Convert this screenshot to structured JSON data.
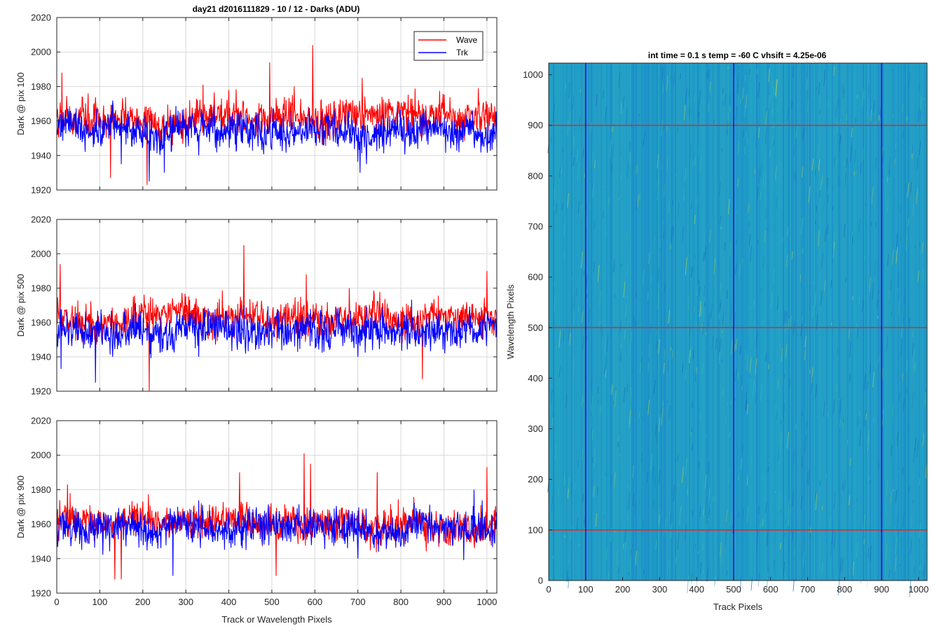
{
  "figure": {
    "left_title": "day21 d2016111829 - 10 / 12 - Darks (ADU)",
    "right_title": "int time = 0.1 s   temp = -60 C   vhsift = 4.25e-06"
  },
  "colors": {
    "wave": "#ff0000",
    "trk": "#0000ff",
    "image_base": "#1f9ec8",
    "grid": "#d9d9d9"
  },
  "chart_data": [
    {
      "type": "line",
      "panel": "top",
      "ylabel": "Dark @ pix 100",
      "xlabel": "",
      "xlim": [
        0,
        1023
      ],
      "ylim": [
        1920,
        2020
      ],
      "xticks": [
        0,
        100,
        200,
        300,
        400,
        500,
        600,
        700,
        800,
        900,
        1000
      ],
      "yticks": [
        1920,
        1940,
        1960,
        1980,
        2000,
        2020
      ],
      "legend": {
        "position": "top-right",
        "entries": [
          "Wave",
          "Trk"
        ]
      },
      "series": [
        {
          "name": "Wave",
          "color": "#ff0000",
          "mean": 1961,
          "noise": 7,
          "notable_points": [
            [
              12,
              1988
            ],
            [
              125,
              1927
            ],
            [
              210,
              1923
            ],
            [
              340,
              1981
            ],
            [
              400,
              1978
            ],
            [
              495,
              1994
            ],
            [
              552,
              1980
            ],
            [
              595,
              2004
            ],
            [
              710,
              1985
            ],
            [
              980,
              1979
            ]
          ]
        },
        {
          "name": "Trk",
          "color": "#0000ff",
          "mean": 1955,
          "noise": 7,
          "notable_points": [
            [
              150,
              1935
            ],
            [
              215,
              1925
            ],
            [
              250,
              1930
            ],
            [
              330,
              1940
            ],
            [
              705,
              1930
            ],
            [
              720,
              1935
            ]
          ]
        }
      ]
    },
    {
      "type": "line",
      "panel": "middle",
      "ylabel": "Dark @ pix 500",
      "xlabel": "",
      "xlim": [
        0,
        1023
      ],
      "ylim": [
        1920,
        2020
      ],
      "xticks": [
        0,
        100,
        200,
        300,
        400,
        500,
        600,
        700,
        800,
        900,
        1000
      ],
      "yticks": [
        1920,
        1940,
        1960,
        1980,
        2000,
        2020
      ],
      "series": [
        {
          "name": "Wave",
          "color": "#ff0000",
          "mean": 1962,
          "noise": 7,
          "notable_points": [
            [
              8,
              1994
            ],
            [
              215,
              1920
            ],
            [
              435,
              2005
            ],
            [
              580,
              1988
            ],
            [
              680,
              1980
            ],
            [
              850,
              1927
            ],
            [
              1000,
              1990
            ]
          ]
        },
        {
          "name": "Trk",
          "color": "#0000ff",
          "mean": 1955,
          "noise": 7,
          "notable_points": [
            [
              10,
              1933
            ],
            [
              90,
              1925
            ],
            [
              130,
              1940
            ],
            [
              330,
              1940
            ],
            [
              500,
              1945
            ],
            [
              700,
              1940
            ]
          ]
        }
      ]
    },
    {
      "type": "line",
      "panel": "bottom",
      "ylabel": "Dark @ pix 900",
      "xlabel": "Track or Wavelength Pixels",
      "xlim": [
        0,
        1023
      ],
      "ylim": [
        1920,
        2020
      ],
      "xticks": [
        0,
        100,
        200,
        300,
        400,
        500,
        600,
        700,
        800,
        900,
        1000
      ],
      "yticks": [
        1920,
        1940,
        1960,
        1980,
        2000,
        2020
      ],
      "series": [
        {
          "name": "Wave",
          "color": "#ff0000",
          "mean": 1961,
          "noise": 7,
          "notable_points": [
            [
              25,
              1983
            ],
            [
              135,
              1928
            ],
            [
              150,
              1928
            ],
            [
              425,
              1990
            ],
            [
              510,
              1930
            ],
            [
              575,
              2001
            ],
            [
              590,
              1995
            ],
            [
              745,
              1990
            ],
            [
              1000,
              1993
            ]
          ]
        },
        {
          "name": "Trk",
          "color": "#0000ff",
          "mean": 1958,
          "noise": 7,
          "notable_points": [
            [
              270,
              1930
            ],
            [
              440,
              1945
            ],
            [
              700,
              1940
            ],
            [
              900,
              1950
            ],
            [
              970,
              1980
            ]
          ]
        }
      ]
    },
    {
      "type": "heatmap",
      "panel": "image",
      "xlabel": "Track Pixels",
      "ylabel": "Wavelength Pixels",
      "xlim": [
        0,
        1023
      ],
      "ylim": [
        0,
        1023
      ],
      "xticks": [
        0,
        100,
        200,
        300,
        400,
        500,
        600,
        700,
        800,
        900,
        1000
      ],
      "yticks": [
        0,
        100,
        200,
        300,
        400,
        500,
        600,
        700,
        800,
        900,
        1000
      ],
      "vertical_markers": [
        100,
        500,
        900
      ],
      "horizontal_markers": [
        100,
        500,
        900
      ]
    }
  ]
}
